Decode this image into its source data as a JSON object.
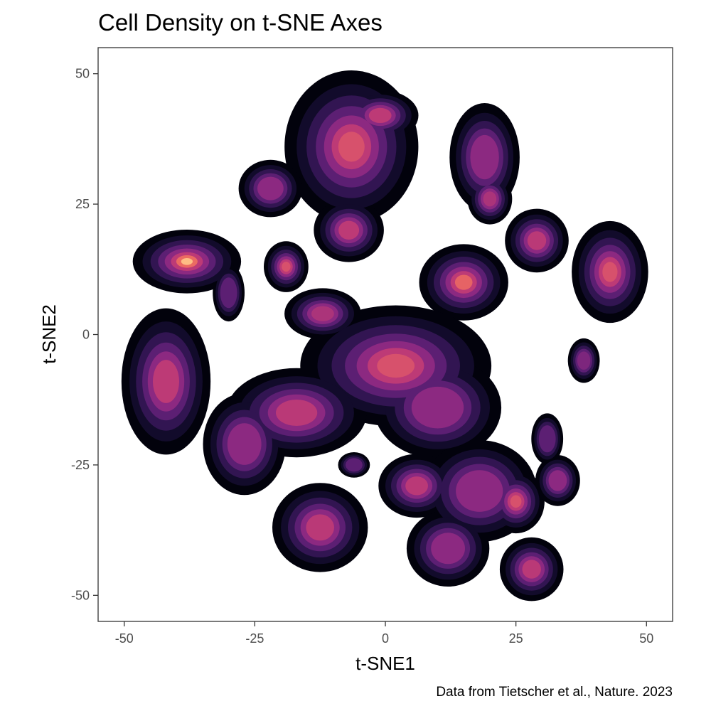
{
  "chart_data": {
    "type": "heatmap",
    "title": "Cell Density on t-SNE Axes",
    "xlabel": "t-SNE1",
    "ylabel": "t-SNE2",
    "caption": "Data from Tietscher et al., Nature. 2023",
    "xlim": [
      -55,
      55
    ],
    "ylim": [
      -55,
      55
    ],
    "x_ticks": [
      -50,
      -25,
      0,
      25,
      50
    ],
    "y_ticks": [
      -50,
      -25,
      0,
      25,
      50
    ],
    "x_tick_labels": [
      "-50",
      "-25",
      "0",
      "25",
      "50"
    ],
    "y_tick_labels": [
      "-50",
      "-25",
      "0",
      "25",
      "50"
    ],
    "grid": false,
    "legend": "none",
    "colormap": "magma",
    "colors": {
      "low": "#0d0a21",
      "mid": "#7b2f8f",
      "high": "#fc9d68",
      "peak": "#fdc586",
      "background": "#ffffff"
    },
    "clusters": [
      {
        "name": "upper-center",
        "x": -6.5,
        "y": 36,
        "rx": 10.5,
        "ry": 12,
        "peak": 0.75
      },
      {
        "name": "upper-center-top",
        "x": -1,
        "y": 42,
        "rx": 6,
        "ry": 4,
        "peak": 0.7
      },
      {
        "name": "upper-right",
        "x": 19,
        "y": 34,
        "rx": 5.5,
        "ry": 8.5,
        "peak": 0.55
      },
      {
        "name": "upper-right-low",
        "x": 20,
        "y": 26,
        "rx": 3.5,
        "ry": 4,
        "peak": 0.6
      },
      {
        "name": "left-upper",
        "x": -22,
        "y": 28,
        "rx": 5,
        "ry": 4.5,
        "peak": 0.5
      },
      {
        "name": "mid-upper",
        "x": -7,
        "y": 20,
        "rx": 5.5,
        "ry": 5,
        "peak": 0.7
      },
      {
        "name": "far-left-bright",
        "x": -38,
        "y": 14,
        "rx": 8.5,
        "ry": 5,
        "peak": 1.0
      },
      {
        "name": "far-left-tail",
        "x": -30,
        "y": 8,
        "rx": 2.5,
        "ry": 4.5,
        "peak": 0.4
      },
      {
        "name": "small-left",
        "x": -19,
        "y": 13,
        "rx": 3.5,
        "ry": 4,
        "peak": 0.75
      },
      {
        "name": "center-small",
        "x": -12,
        "y": 4,
        "rx": 6,
        "ry": 4,
        "peak": 0.6
      },
      {
        "name": "right-mid",
        "x": 15,
        "y": 10,
        "rx": 7,
        "ry": 6,
        "peak": 0.8
      },
      {
        "name": "right-upper",
        "x": 29,
        "y": 18,
        "rx": 5,
        "ry": 5,
        "peak": 0.65
      },
      {
        "name": "far-right",
        "x": 43,
        "y": 12,
        "rx": 6,
        "ry": 8,
        "peak": 0.75
      },
      {
        "name": "far-right-small",
        "x": 38,
        "y": -5,
        "rx": 2.5,
        "ry": 3.5,
        "peak": 0.45
      },
      {
        "name": "left-lower",
        "x": -42,
        "y": -9,
        "rx": 7,
        "ry": 11.5,
        "peak": 0.7
      },
      {
        "name": "center-large",
        "x": 2,
        "y": -6,
        "rx": 15,
        "ry": 9.5,
        "peak": 0.75
      },
      {
        "name": "center-mid",
        "x": 10,
        "y": -14,
        "rx": 10,
        "ry": 8,
        "peak": 0.55
      },
      {
        "name": "left-band",
        "x": -17,
        "y": -15,
        "rx": 11,
        "ry": 7,
        "peak": 0.65
      },
      {
        "name": "left-band-end",
        "x": -27,
        "y": -21,
        "rx": 6.5,
        "ry": 8,
        "peak": 0.5
      },
      {
        "name": "lower-mid",
        "x": 6,
        "y": -29,
        "rx": 6,
        "ry": 5,
        "peak": 0.65
      },
      {
        "name": "lower-center",
        "x": 18,
        "y": -30,
        "rx": 9,
        "ry": 8,
        "peak": 0.55
      },
      {
        "name": "lower-right",
        "x": 25,
        "y": -32,
        "rx": 4.5,
        "ry": 5,
        "peak": 0.75
      },
      {
        "name": "right-lower-small",
        "x": 33,
        "y": -28,
        "rx": 3.5,
        "ry": 4,
        "peak": 0.55
      },
      {
        "name": "bottom-left",
        "x": -12.5,
        "y": -37,
        "rx": 7.5,
        "ry": 7,
        "peak": 0.65
      },
      {
        "name": "bottom-center",
        "x": 12,
        "y": -41,
        "rx": 6.5,
        "ry": 6,
        "peak": 0.5
      },
      {
        "name": "bottom-right",
        "x": 28,
        "y": -45,
        "rx": 5,
        "ry": 5,
        "peak": 0.65
      },
      {
        "name": "center-lower-small",
        "x": -6,
        "y": -25,
        "rx": 2.5,
        "ry": 2,
        "peak": 0.35
      },
      {
        "name": "right-top-small",
        "x": 31,
        "y": -20,
        "rx": 2.5,
        "ry": 4,
        "peak": 0.35
      }
    ]
  }
}
